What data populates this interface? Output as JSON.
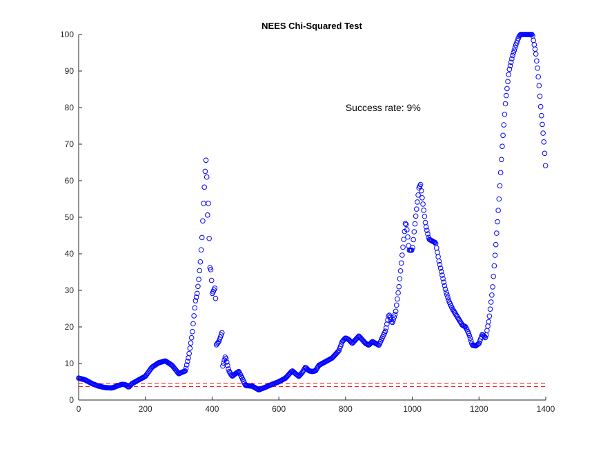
{
  "chart_data": {
    "type": "scatter",
    "title": "NEES Chi-Squared Test",
    "xlabel": "",
    "ylabel": "",
    "xlim": [
      0,
      1400
    ],
    "ylim": [
      0,
      100
    ],
    "xticks": [
      0,
      200,
      400,
      600,
      800,
      1000,
      1200,
      1400
    ],
    "yticks": [
      0,
      10,
      20,
      30,
      40,
      50,
      60,
      70,
      80,
      90,
      100
    ],
    "grid": false,
    "marker": "open-circle",
    "marker_color": "#0000ff",
    "annotation": {
      "text": "Success rate: 9%",
      "x": 800,
      "y": 80
    },
    "bounds": {
      "lower": 3.7,
      "upper": 4.6,
      "color": "#ff0000",
      "style": "dashed"
    },
    "series": [
      {
        "points": [
          [
            0,
            6
          ],
          [
            20,
            5.5
          ],
          [
            40,
            4.5
          ],
          [
            60,
            3.8
          ],
          [
            80,
            3.4
          ],
          [
            100,
            3.3
          ],
          [
            120,
            4
          ],
          [
            130,
            4.3
          ],
          [
            140,
            4.2
          ],
          [
            150,
            3.5
          ],
          [
            160,
            4.5
          ],
          [
            180,
            5.5
          ],
          [
            200,
            6.5
          ],
          [
            220,
            9
          ],
          [
            240,
            10.2
          ],
          [
            260,
            10.7
          ],
          [
            280,
            9.5
          ],
          [
            300,
            7.2
          ],
          [
            320,
            8
          ],
          [
            330,
            12
          ],
          [
            340,
            18
          ],
          [
            350,
            27
          ],
          [
            355,
            29
          ],
          [
            360,
            33
          ],
          [
            365,
            38
          ],
          [
            370,
            45
          ],
          [
            375,
            55
          ],
          [
            380,
            64
          ],
          [
            383,
            67
          ],
          [
            386,
            49
          ],
          [
            388,
            57
          ],
          [
            392,
            41
          ],
          [
            394,
            35
          ],
          [
            397,
            36
          ],
          [
            400,
            29
          ],
          [
            410,
            31
          ],
          [
            412,
            15
          ],
          [
            420,
            16
          ],
          [
            430,
            18.5
          ],
          [
            432,
            9.3
          ],
          [
            440,
            12
          ],
          [
            450,
            8
          ],
          [
            460,
            6.5
          ],
          [
            470,
            7.2
          ],
          [
            480,
            7.8
          ],
          [
            490,
            6
          ],
          [
            500,
            4
          ],
          [
            520,
            3.8
          ],
          [
            540,
            2.8
          ],
          [
            560,
            3.5
          ],
          [
            580,
            4.3
          ],
          [
            600,
            5
          ],
          [
            620,
            6
          ],
          [
            640,
            8
          ],
          [
            650,
            7.2
          ],
          [
            660,
            6.5
          ],
          [
            670,
            7.5
          ],
          [
            680,
            9
          ],
          [
            690,
            8
          ],
          [
            700,
            7.8
          ],
          [
            710,
            8
          ],
          [
            720,
            9.5
          ],
          [
            730,
            10
          ],
          [
            740,
            10.5
          ],
          [
            750,
            11
          ],
          [
            760,
            11.5
          ],
          [
            770,
            12.5
          ],
          [
            780,
            13.5
          ],
          [
            790,
            16
          ],
          [
            800,
            17
          ],
          [
            810,
            16.5
          ],
          [
            820,
            15.5
          ],
          [
            830,
            16.5
          ],
          [
            840,
            17.5
          ],
          [
            850,
            16.5
          ],
          [
            860,
            15.5
          ],
          [
            870,
            15
          ],
          [
            880,
            16
          ],
          [
            890,
            15.5
          ],
          [
            900,
            15
          ],
          [
            910,
            17
          ],
          [
            920,
            19
          ],
          [
            930,
            23.5
          ],
          [
            940,
            21
          ],
          [
            950,
            24
          ],
          [
            960,
            31
          ],
          [
            970,
            40
          ],
          [
            980,
            49
          ],
          [
            985,
            46
          ],
          [
            990,
            41
          ],
          [
            1000,
            41
          ],
          [
            1010,
            50
          ],
          [
            1020,
            58
          ],
          [
            1025,
            59
          ],
          [
            1030,
            55
          ],
          [
            1040,
            48
          ],
          [
            1050,
            44
          ],
          [
            1060,
            43.5
          ],
          [
            1070,
            43
          ],
          [
            1080,
            38
          ],
          [
            1090,
            34
          ],
          [
            1100,
            30
          ],
          [
            1110,
            27
          ],
          [
            1120,
            25
          ],
          [
            1130,
            23.5
          ],
          [
            1140,
            22
          ],
          [
            1150,
            20.5
          ],
          [
            1160,
            20
          ],
          [
            1170,
            18
          ],
          [
            1180,
            15
          ],
          [
            1190,
            14.8
          ],
          [
            1200,
            15.5
          ],
          [
            1210,
            18
          ],
          [
            1220,
            17
          ],
          [
            1230,
            22
          ],
          [
            1240,
            30
          ],
          [
            1250,
            42
          ],
          [
            1260,
            55
          ],
          [
            1270,
            70
          ],
          [
            1280,
            82
          ],
          [
            1290,
            90
          ],
          [
            1300,
            94
          ],
          [
            1310,
            97
          ],
          [
            1320,
            99.5
          ],
          [
            1325,
            100
          ],
          [
            1360,
            100
          ],
          [
            1370,
            95
          ],
          [
            1375,
            91
          ],
          [
            1380,
            86
          ],
          [
            1385,
            80
          ],
          [
            1390,
            75
          ],
          [
            1395,
            70
          ],
          [
            1400,
            63
          ]
        ]
      }
    ]
  }
}
